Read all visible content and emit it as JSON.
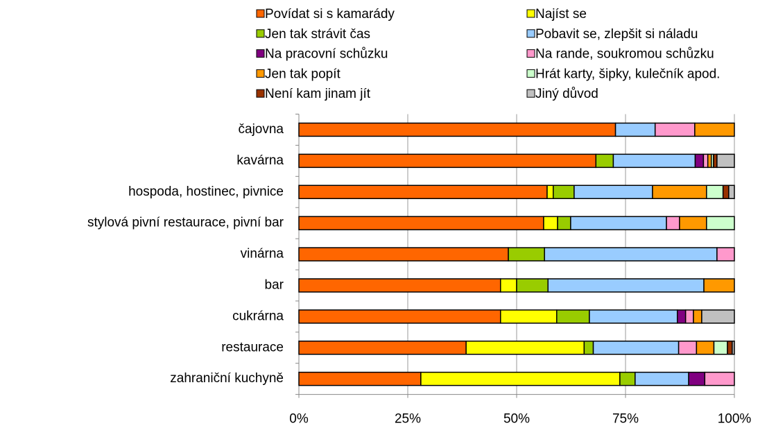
{
  "chart_data": {
    "type": "stacked_bar_horizontal",
    "categories": [
      "čajovna",
      "kavárna",
      "hospoda, hostinec, pivnice",
      "stylová pivní restaurace, pivní bar",
      "vinárna",
      "bar",
      "cukrárna",
      "restaurace",
      "zahraniční kuchyně"
    ],
    "series": [
      {
        "name": "Povídat si s kamarády",
        "color": "#ff6600",
        "values": [
          72.7,
          68.2,
          57.0,
          56.2,
          48.1,
          46.3,
          46.3,
          38.4,
          28.0
        ]
      },
      {
        "name": "Najíst se",
        "color": "#ffff00",
        "values": [
          0,
          0,
          1.4,
          3.2,
          0,
          3.7,
          12.9,
          27.1,
          45.7
        ]
      },
      {
        "name": "Jen tak strávit čas",
        "color": "#99cc00",
        "values": [
          0,
          4.0,
          4.8,
          3.0,
          8.3,
          7.2,
          7.5,
          2.1,
          3.5
        ]
      },
      {
        "name": "Pobavit se, zlepšit si náladu",
        "color": "#99ccff",
        "values": [
          9.1,
          18.8,
          18.0,
          22.0,
          39.6,
          35.8,
          20.2,
          19.6,
          12.3
        ]
      },
      {
        "name": "Na pracovní schůzku",
        "color": "#800080",
        "values": [
          0,
          1.9,
          0,
          0,
          0,
          0,
          1.9,
          0,
          3.7
        ]
      },
      {
        "name": "Na rande, soukromou schůzku",
        "color": "#ff99cc",
        "values": [
          9.1,
          1.0,
          0,
          3.0,
          4.0,
          0,
          1.8,
          4.1,
          6.8
        ]
      },
      {
        "name": "Jen tak popít",
        "color": "#ff9900",
        "values": [
          9.1,
          0.8,
          12.4,
          6.2,
          0,
          7.0,
          1.9,
          4.0,
          0
        ]
      },
      {
        "name": "Hrát karty, šipky, kulečník apod.",
        "color": "#ccffcc",
        "values": [
          0,
          0.5,
          3.8,
          6.4,
          0,
          0,
          0,
          3.1,
          0
        ]
      },
      {
        "name": "Není kam jinam jít",
        "color": "#993300",
        "values": [
          0,
          0.8,
          1.3,
          0,
          0,
          0,
          0,
          1.1,
          0
        ]
      },
      {
        "name": "Jiný důvod",
        "color": "#c0c0c0",
        "values": [
          0,
          4.0,
          1.3,
          0,
          0,
          0,
          7.5,
          0.5,
          0
        ]
      }
    ],
    "xlim": [
      0,
      100
    ],
    "xticks": [
      {
        "value": 0,
        "label": "0%"
      },
      {
        "value": 25,
        "label": "25%"
      },
      {
        "value": 50,
        "label": "50%"
      },
      {
        "value": 75,
        "label": "75%"
      },
      {
        "value": 100,
        "label": "100%"
      }
    ],
    "grid": true
  }
}
